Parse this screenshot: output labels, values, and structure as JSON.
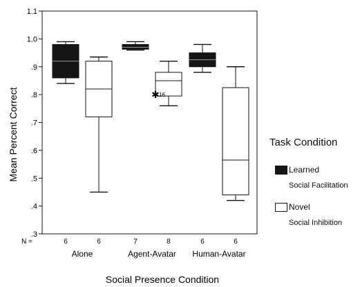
{
  "chart_data": {
    "type": "boxplot",
    "ylabel": "Mean Percent Correct",
    "xlabel": "Social Presence Condition",
    "ylim": [
      0.3,
      1.1
    ],
    "yticks": [
      0.3,
      0.4,
      0.5,
      0.6,
      0.7,
      0.8,
      0.9,
      1.0,
      1.1
    ],
    "ytick_labels": [
      ".3",
      ".4",
      ".5",
      ".6",
      ".7",
      ".8",
      ".9",
      "1.0",
      "1.1"
    ],
    "categories": [
      "Alone",
      "Agent-Avatar",
      "Human-Avatar"
    ],
    "n_label": "N =",
    "legend_title": "Task Condition",
    "legend_position": "right",
    "grid": false,
    "series": [
      {
        "name": "Learned",
        "subtitle": "Social Facilitation",
        "fill": "#151515",
        "boxes": [
          {
            "category": "Alone",
            "n": "6",
            "whisker_low": 0.84,
            "q1": 0.86,
            "median": 0.92,
            "q3": 0.98,
            "whisker_high": 0.99
          },
          {
            "category": "Agent-Avatar",
            "n": "7",
            "whisker_low": 0.96,
            "q1": 0.963,
            "median": 0.97,
            "q3": 0.98,
            "whisker_high": 0.99
          },
          {
            "category": "Human-Avatar",
            "n": "6",
            "whisker_low": 0.88,
            "q1": 0.9,
            "median": 0.925,
            "q3": 0.95,
            "whisker_high": 0.98
          }
        ]
      },
      {
        "name": "Novel",
        "subtitle": "Social Inhibition",
        "fill": "#ffffff",
        "boxes": [
          {
            "category": "Alone",
            "n": "6",
            "whisker_low": 0.45,
            "q1": 0.72,
            "median": 0.82,
            "q3": 0.92,
            "whisker_high": 0.935
          },
          {
            "category": "Agent-Avatar",
            "n": "8",
            "whisker_low": 0.76,
            "q1": 0.795,
            "median": 0.85,
            "q3": 0.88,
            "whisker_high": 0.92,
            "outliers": [
              {
                "value": 0.8,
                "label": "16"
              }
            ]
          },
          {
            "category": "Human-Avatar",
            "n": "6",
            "whisker_low": 0.42,
            "q1": 0.44,
            "median": 0.565,
            "q3": 0.825,
            "whisker_high": 0.9
          }
        ]
      }
    ]
  }
}
